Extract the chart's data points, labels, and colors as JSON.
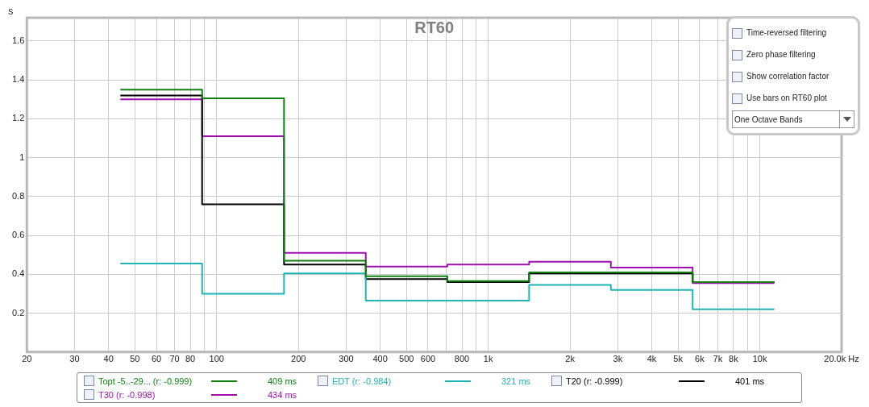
{
  "chart_data": {
    "type": "step",
    "title": "RT60",
    "ylabel": "s",
    "x": [
      44.2,
      88.4,
      177,
      354,
      707,
      1414,
      2828,
      5657,
      11314
    ],
    "series": [
      {
        "name": "Topt -5..-29... (r: -0.999)",
        "color": "#118011",
        "values": [
          1.35,
          1.305,
          0.47,
          0.39,
          0.365,
          0.41,
          0.41,
          0.36,
          0.36
        ]
      },
      {
        "name": "EDT (r: -0.984)",
        "color": "#20b4b4",
        "values": [
          0.455,
          0.3,
          0.405,
          0.265,
          0.265,
          0.345,
          0.32,
          0.22,
          0.22
        ]
      },
      {
        "name": "T20 (r: -0.999)",
        "color": "#000000",
        "values": [
          1.32,
          0.76,
          0.45,
          0.375,
          0.36,
          0.405,
          0.405,
          0.36,
          0.36
        ]
      },
      {
        "name": "T30 (r: -0.998)",
        "color": "#a010b0",
        "values": [
          1.3,
          1.11,
          0.51,
          0.44,
          0.45,
          0.465,
          0.435,
          0.355,
          0.355
        ]
      }
    ],
    "annotations": [
      "409 ms",
      "321 ms",
      "401 ms",
      "434 ms",
      "Time-reversed filtering",
      "Zero phase filtering",
      "Show correlation factor",
      "Use bars on RT60 plot",
      "One Octave Bands"
    ],
    "log": "x",
    "grid": true,
    "legend": "bottom",
    "xlim": [
      20,
      20000
    ],
    "xticks": [
      20,
      30,
      40,
      50,
      60,
      70,
      80,
      {
        "value": 90,
        "label": null
      },
      100,
      200,
      300,
      400,
      500,
      600,
      {
        "value": 700,
        "label": null
      },
      800,
      {
        "value": 900,
        "label": null
      },
      {
        "value": 1000,
        "label": "1k"
      },
      {
        "value": 2000,
        "label": "2k"
      },
      {
        "value": 3000,
        "label": "3k"
      },
      {
        "value": 4000,
        "label": "4k"
      },
      {
        "value": 5000,
        "label": "5k"
      },
      {
        "value": 6000,
        "label": "6k"
      },
      {
        "value": 7000,
        "label": "7k"
      },
      {
        "value": 8000,
        "label": "8k"
      },
      {
        "value": 9000,
        "label": null
      },
      {
        "value": 10000,
        "label": "10k"
      },
      {
        "value": 20000,
        "label": "20.0k Hz"
      }
    ],
    "ylim": [
      0,
      1.72
    ],
    "yticks": [
      0.2,
      0.4,
      0.6,
      0.8,
      1.0,
      1.2,
      1.4,
      1.6
    ]
  }
}
